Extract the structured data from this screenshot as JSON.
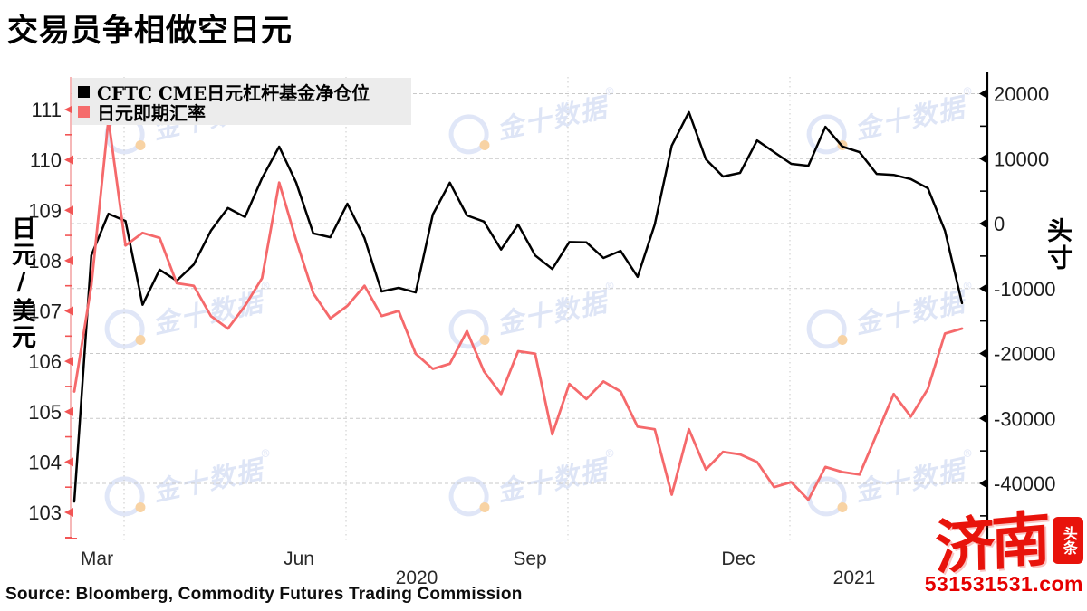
{
  "title": "交易员争相做空日元",
  "legend": {
    "items": [
      {
        "label": "CFTC CME日元杠杆基金净仓位",
        "color": "#000000"
      },
      {
        "label": "日元即期汇率",
        "color": "#f56c6c"
      }
    ]
  },
  "source": "Source:  Bloomberg, Commodity Futures Trading Commission",
  "watermark": {
    "text": "金十数据",
    "reg_mark": "®",
    "color": "#dbe3f6",
    "accent_color": "#f8cf9b"
  },
  "branding": {
    "name": "济南",
    "seal": "头条",
    "site": "531531531.com",
    "color": "#e8130b"
  },
  "colors": {
    "black_line": "#000000",
    "red_line": "#f5696b",
    "left_axis_line": "#f3a6a6",
    "red_tick": "#f25555",
    "grid": "#c9c9c9",
    "tick_label": "#1d1d1d"
  },
  "chart_data": {
    "type": "line",
    "frequency": "weekly, late Feb 2020 - mid Feb 2021",
    "title": "交易员争相做空日元",
    "left_axis": {
      "label": "日元/美元",
      "range": [
        103,
        111
      ],
      "ticks": [
        111,
        110,
        109,
        108,
        107,
        106,
        105,
        104,
        103
      ],
      "minor_ticks": [
        110.5,
        109.5,
        108.5,
        107.5,
        106.5,
        105.5,
        104.5,
        103.5,
        102.5
      ]
    },
    "right_axis": {
      "label": "头寸",
      "range": [
        -40000,
        20000
      ],
      "ticks": [
        20000,
        10000,
        0,
        -10000,
        -20000,
        -30000,
        -40000
      ],
      "minor_ticks": [
        15000,
        5000,
        -5000,
        -15000,
        -25000,
        -35000,
        -45000
      ]
    },
    "x_axis": {
      "month_labels": [
        "Mar",
        "Jun",
        "Sep",
        "Dec"
      ],
      "year_labels": [
        "2020",
        "2021"
      ]
    },
    "grid": {
      "horizontal": "dashed",
      "vertical": "dotted"
    },
    "legend_position": "top-left",
    "series": [
      {
        "name": "CFTC CME日元杠杆基金净仓位",
        "axis": "right",
        "color": "#000000",
        "values": [
          -42800,
          -4900,
          1500,
          400,
          -12500,
          -7100,
          -8800,
          -6300,
          -1100,
          2400,
          1000,
          7000,
          11850,
          6300,
          -1500,
          -2100,
          3050,
          -2250,
          -10450,
          -9900,
          -10600,
          1400,
          6300,
          1250,
          300,
          -4000,
          -150,
          -4900,
          -7000,
          -2850,
          -2900,
          -5300,
          -4200,
          -8200,
          -150,
          12000,
          17150,
          9900,
          7250,
          7800,
          12800,
          11000,
          9200,
          8900,
          14900,
          11850,
          11000,
          7650,
          7500,
          6850,
          5450,
          -1100,
          -12250
        ]
      },
      {
        "name": "日元即期汇率",
        "axis": "left",
        "color": "#f5696b",
        "values": [
          105.4,
          107.5,
          110.8,
          108.3,
          108.55,
          108.45,
          107.55,
          107.5,
          106.9,
          106.65,
          107.1,
          107.65,
          109.55,
          108.4,
          107.35,
          106.85,
          107.1,
          107.5,
          106.9,
          107.0,
          106.15,
          105.85,
          105.95,
          106.6,
          105.8,
          105.35,
          106.2,
          106.15,
          104.55,
          105.55,
          105.25,
          105.6,
          105.4,
          104.7,
          104.65,
          103.35,
          104.65,
          103.85,
          104.2,
          104.15,
          104.0,
          103.5,
          103.6,
          103.25,
          103.9,
          103.8,
          103.75,
          104.55,
          105.35,
          104.9,
          105.45,
          106.55,
          106.65
        ]
      }
    ]
  }
}
